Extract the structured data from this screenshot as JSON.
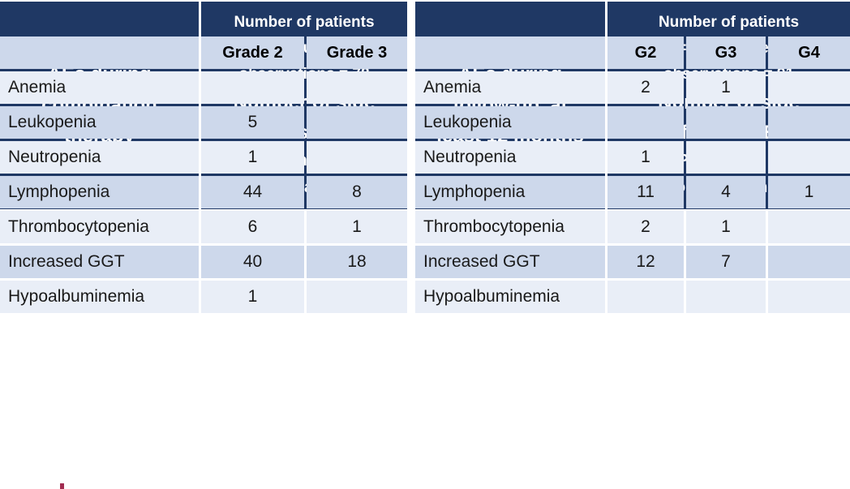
{
  "colors": {
    "header_bg": "#1F3864",
    "header_text": "#FFFFFF",
    "band_dark": "#CDD8EB",
    "band_light": "#E9EEF7",
    "body_text": "#191919",
    "artifact_red": "#A12C50"
  },
  "tables": [
    {
      "title": "AEs during\ncombination\ntherapy",
      "stats": "Number of patients\nn = 21, Number of\nobservations = 78",
      "side_effects": "Number of side\neffects - AEs",
      "bracket": "[Percentage of\nobservations]",
      "grade_headers": [
        "Grade 2",
        "Grade 3"
      ],
      "rows": [
        {
          "label": "Anemia",
          "values": [
            "",
            ""
          ]
        },
        {
          "label": "Leukopenia",
          "values": [
            "5",
            ""
          ]
        },
        {
          "label": "Neutropenia",
          "values": [
            "1",
            ""
          ]
        },
        {
          "label": "Lymphopenia",
          "values": [
            "44",
            "8"
          ]
        },
        {
          "label": "Thrombocytopenia",
          "values": [
            "6",
            "1"
          ]
        },
        {
          "label": "Increased GGT",
          "values": [
            "40",
            "18"
          ]
        },
        {
          "label": "Hypoalbuminemia",
          "values": [
            "1",
            ""
          ]
        }
      ]
    },
    {
      "title": "AEs during\nfollow-up, at\nleast 12 months",
      "stats": "Number of patients\nn = 21, Number of\nobservations = 91",
      "side_effects": "Number of side\neffects - AEs",
      "bracket": "[Percentage of\nobservations]",
      "grade_headers": [
        "G2",
        "G3",
        "G4"
      ],
      "rows": [
        {
          "label": "Anemia",
          "values": [
            "2",
            "1",
            ""
          ]
        },
        {
          "label": "Leukopenia",
          "values": [
            "",
            "",
            ""
          ]
        },
        {
          "label": "Neutropenia",
          "values": [
            "1",
            "",
            ""
          ]
        },
        {
          "label": "Lymphopenia",
          "values": [
            "11",
            "4",
            "1"
          ]
        },
        {
          "label": "Thrombocytopenia",
          "values": [
            "2",
            "1",
            ""
          ]
        },
        {
          "label": "Increased GGT",
          "values": [
            "12",
            "7",
            ""
          ]
        },
        {
          "label": "Hypoalbuminemia",
          "values": [
            "",
            "",
            ""
          ]
        }
      ]
    }
  ],
  "chart_data": [
    {
      "type": "table",
      "title": "AEs during combination therapy",
      "subtitle": "Number of patients n = 21, Number of observations = 78; Number of side effects - AEs [Percentage of observations]",
      "columns": [
        "AEs during combination therapy",
        "Grade 2",
        "Grade 3"
      ],
      "rows": [
        [
          "Anemia",
          "",
          ""
        ],
        [
          "Leukopenia",
          "5",
          ""
        ],
        [
          "Neutropenia",
          "1",
          ""
        ],
        [
          "Lymphopenia",
          "44",
          "8"
        ],
        [
          "Thrombocytopenia",
          "6",
          "1"
        ],
        [
          "Increased GGT",
          "40",
          "18"
        ],
        [
          "Hypoalbuminemia",
          "1",
          ""
        ]
      ]
    },
    {
      "type": "table",
      "title": "AEs during follow-up, at least 12 months",
      "subtitle": "Number of patients n = 21, Number of observations = 91; Number of side effects - AEs [Percentage of observations]",
      "columns": [
        "AEs during follow-up, at least 12 months",
        "G2",
        "G3",
        "G4"
      ],
      "rows": [
        [
          "Anemia",
          "2",
          "1",
          ""
        ],
        [
          "Leukopenia",
          "",
          "",
          ""
        ],
        [
          "Neutropenia",
          "1",
          "",
          ""
        ],
        [
          "Lymphopenia",
          "11",
          "4",
          "1"
        ],
        [
          "Thrombocytopenia",
          "2",
          "1",
          ""
        ],
        [
          "Increased GGT",
          "12",
          "7",
          ""
        ],
        [
          "Hypoalbuminemia",
          "",
          "",
          ""
        ]
      ]
    }
  ]
}
